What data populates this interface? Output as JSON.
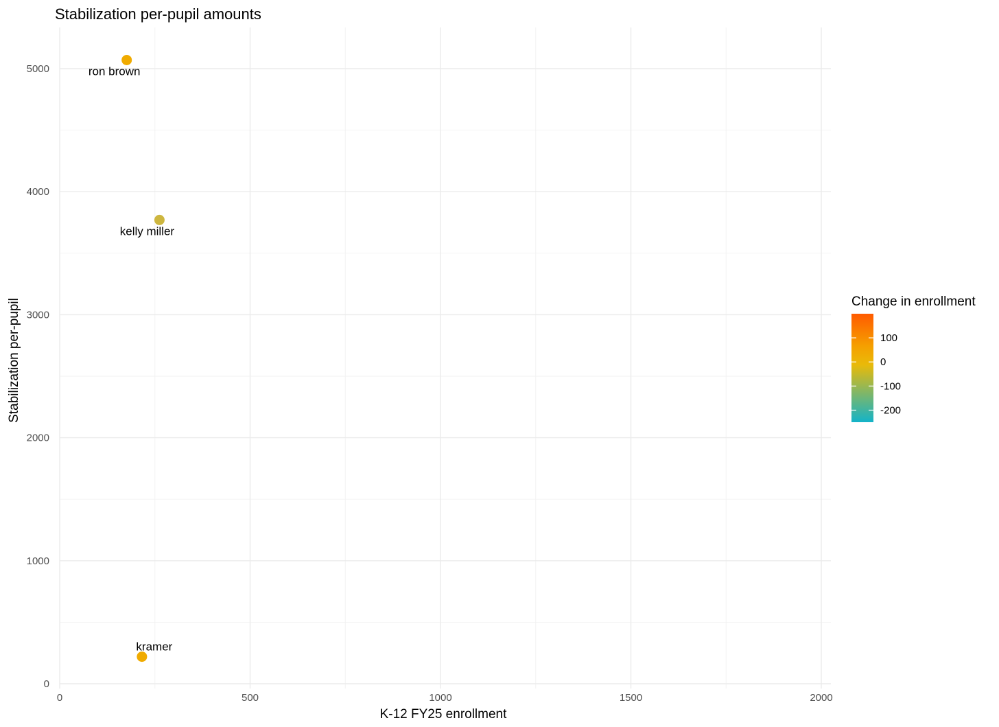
{
  "chart_data": {
    "type": "scatter",
    "title": "Stabilization per-pupil amounts",
    "xlabel": "K-12 FY25 enrollment",
    "ylabel": "Stabilization per-pupil",
    "xlim": [
      -10,
      2035
    ],
    "ylim": [
      -20,
      5300
    ],
    "x_ticks": [
      0,
      500,
      1000,
      1500,
      2000
    ],
    "y_ticks": [
      0,
      1000,
      2000,
      3000,
      4000,
      5000
    ],
    "grid": true,
    "points": [
      {
        "label": "ron brown",
        "x": 176,
        "y": 5070,
        "color_value": -10
      },
      {
        "label": "kelly miller",
        "x": 262,
        "y": 3770,
        "color_value": -75
      },
      {
        "label": "kramer",
        "x": 216,
        "y": 220,
        "color_value": -10
      }
    ],
    "legend": {
      "title": "Change in enrollment",
      "placement": "right",
      "range": [
        -250,
        200
      ],
      "ticks": [
        100,
        0,
        -100,
        -200
      ],
      "colors": [
        "#13b3c9",
        "#e9ba09",
        "#f5a000",
        "#ff5a00"
      ]
    }
  }
}
